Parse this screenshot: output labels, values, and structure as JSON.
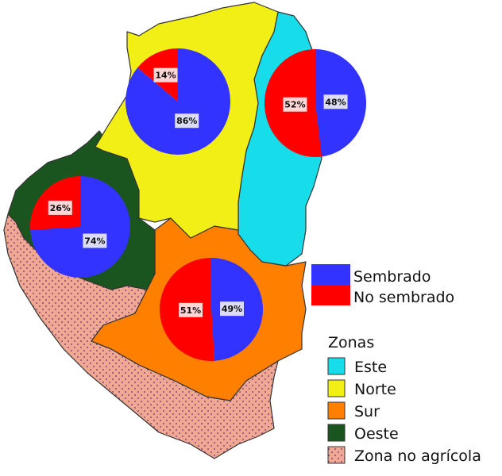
{
  "colors": {
    "sembrado": "#3333ff",
    "no_sembrado": "#ff0000",
    "este": "#16dde9",
    "norte": "#f2ef16",
    "sur": "#ff8000",
    "oeste": "#1a5520",
    "zona_no_agricola": "#f0a890",
    "dots": "#6a2a8a",
    "label_bg_blue": "#dcdcf4",
    "label_bg_red": "#ffd6d6"
  },
  "legend_pie": {
    "sembrado": "Sembrado",
    "no_sembrado": "No sembrado"
  },
  "legend_zonas": {
    "title": "Zonas",
    "items": [
      "Este",
      "Norte",
      "Sur",
      "Oeste",
      "Zona no agrícola"
    ]
  },
  "chart_data": [
    {
      "type": "pie",
      "zone": "Norte",
      "categories": [
        "Sembrado",
        "No sembrado"
      ],
      "values": [
        86,
        14
      ],
      "labels": [
        "86%",
        "14%"
      ]
    },
    {
      "type": "pie",
      "zone": "Este",
      "categories": [
        "Sembrado",
        "No sembrado"
      ],
      "values": [
        48,
        52
      ],
      "labels": [
        "48%",
        "52%"
      ]
    },
    {
      "type": "pie",
      "zone": "Oeste",
      "categories": [
        "Sembrado",
        "No sembrado"
      ],
      "values": [
        74,
        26
      ],
      "labels": [
        "74%",
        "26%"
      ]
    },
    {
      "type": "pie",
      "zone": "Sur",
      "categories": [
        "Sembrado",
        "No sembrado"
      ],
      "values": [
        49,
        51
      ],
      "labels": [
        "49%",
        "51%"
      ]
    }
  ]
}
